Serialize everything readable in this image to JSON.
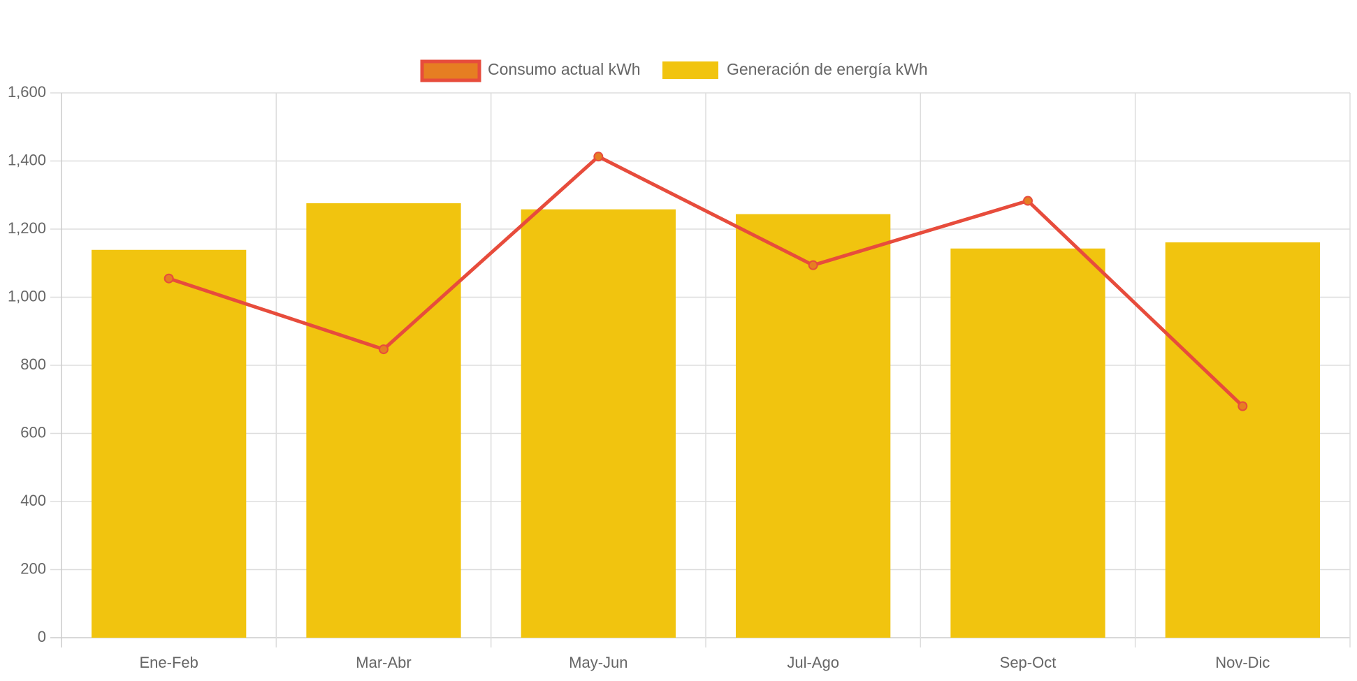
{
  "colors": {
    "bar": "#f1c40f",
    "line": "#e74c3c",
    "point_fill": "#e67e22",
    "grid": "#dddddd",
    "axis": "#cccccc",
    "text": "#666666"
  },
  "chart_data": {
    "type": "bar",
    "categories": [
      "Ene-Feb",
      "Mar-Abr",
      "May-Jun",
      "Jul-Ago",
      "Sep-Oct",
      "Nov-Dic"
    ],
    "series": [
      {
        "name": "Consumo actual kWh",
        "type": "line",
        "values": [
          1055,
          847,
          1413,
          1094,
          1283,
          680
        ]
      },
      {
        "name": "Generación de energía kWh",
        "type": "bar",
        "values": [
          1139,
          1276,
          1258,
          1244,
          1143,
          1161
        ]
      }
    ],
    "yticks": [
      "0",
      "200",
      "400",
      "600",
      "800",
      "1,000",
      "1,200",
      "1,400",
      "1,600"
    ],
    "ylim": [
      0,
      1600
    ],
    "grid": true,
    "legend_position": "top"
  }
}
